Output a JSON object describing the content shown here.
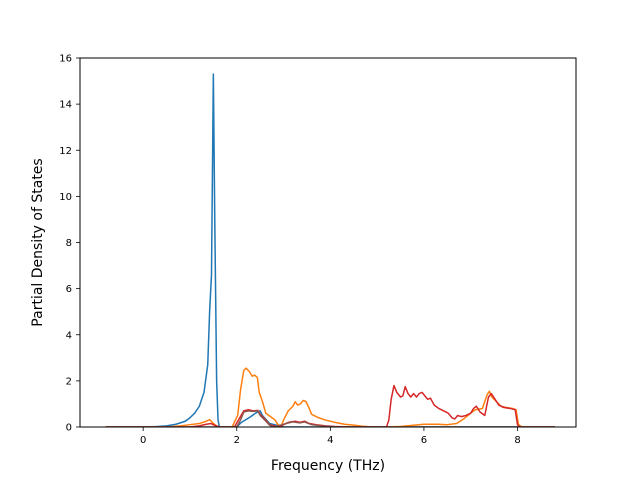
{
  "chart_data": {
    "type": "line",
    "title": "",
    "xlabel": "Frequency (THz)",
    "ylabel": "Partial Density of States",
    "xlim": [
      -1.35,
      9.25
    ],
    "ylim": [
      0,
      16
    ],
    "xticks": [
      0,
      2,
      4,
      6,
      8
    ],
    "yticks": [
      0,
      2,
      4,
      6,
      8,
      10,
      12,
      14,
      16
    ],
    "grid": false,
    "legend": "none",
    "series": [
      {
        "color": "#1f77b4",
        "points": [
          [
            -0.8,
            0
          ],
          [
            0,
            0
          ],
          [
            0.3,
            0.02
          ],
          [
            0.5,
            0.05
          ],
          [
            0.7,
            0.12
          ],
          [
            0.9,
            0.25
          ],
          [
            1.0,
            0.4
          ],
          [
            1.1,
            0.6
          ],
          [
            1.2,
            0.9
          ],
          [
            1.3,
            1.5
          ],
          [
            1.38,
            2.7
          ],
          [
            1.42,
            5.0
          ],
          [
            1.46,
            6.6
          ],
          [
            1.5,
            15.3
          ],
          [
            1.53,
            9.0
          ],
          [
            1.57,
            2.0
          ],
          [
            1.6,
            0.3
          ],
          [
            1.63,
            0
          ],
          [
            2.0,
            0
          ],
          [
            2.1,
            0.2
          ],
          [
            2.3,
            0.45
          ],
          [
            2.4,
            0.6
          ],
          [
            2.5,
            0.7
          ],
          [
            2.55,
            0.5
          ],
          [
            2.7,
            0.15
          ],
          [
            3.0,
            0
          ],
          [
            4.0,
            0
          ],
          [
            5.0,
            0
          ],
          [
            6.0,
            0
          ],
          [
            7.0,
            0
          ],
          [
            8.0,
            0
          ],
          [
            8.8,
            0
          ]
        ]
      },
      {
        "color": "#ff7f0e",
        "points": [
          [
            -0.8,
            0
          ],
          [
            0.5,
            0
          ],
          [
            0.8,
            0.05
          ],
          [
            1.0,
            0.1
          ],
          [
            1.2,
            0.15
          ],
          [
            1.35,
            0.25
          ],
          [
            1.42,
            0.32
          ],
          [
            1.5,
            0.15
          ],
          [
            1.6,
            0
          ],
          [
            1.9,
            0
          ],
          [
            2.02,
            0.5
          ],
          [
            2.08,
            1.6
          ],
          [
            2.15,
            2.45
          ],
          [
            2.2,
            2.55
          ],
          [
            2.27,
            2.4
          ],
          [
            2.33,
            2.2
          ],
          [
            2.38,
            2.25
          ],
          [
            2.44,
            2.15
          ],
          [
            2.48,
            1.5
          ],
          [
            2.55,
            1.1
          ],
          [
            2.62,
            0.6
          ],
          [
            2.72,
            0.45
          ],
          [
            2.82,
            0.3
          ],
          [
            2.88,
            0.1
          ],
          [
            2.95,
            0.05
          ],
          [
            3.0,
            0.3
          ],
          [
            3.1,
            0.7
          ],
          [
            3.2,
            0.9
          ],
          [
            3.25,
            1.1
          ],
          [
            3.3,
            0.95
          ],
          [
            3.36,
            1.0
          ],
          [
            3.42,
            1.15
          ],
          [
            3.48,
            1.1
          ],
          [
            3.55,
            0.8
          ],
          [
            3.6,
            0.55
          ],
          [
            3.75,
            0.4
          ],
          [
            3.9,
            0.3
          ],
          [
            4.1,
            0.2
          ],
          [
            4.3,
            0.12
          ],
          [
            4.5,
            0.08
          ],
          [
            4.7,
            0.03
          ],
          [
            4.9,
            0
          ],
          [
            5.2,
            0
          ],
          [
            5.5,
            0.02
          ],
          [
            5.8,
            0.08
          ],
          [
            6.0,
            0.12
          ],
          [
            6.3,
            0.12
          ],
          [
            6.5,
            0.1
          ],
          [
            6.7,
            0.15
          ],
          [
            6.85,
            0.35
          ],
          [
            7.0,
            0.6
          ],
          [
            7.1,
            0.75
          ],
          [
            7.25,
            0.8
          ],
          [
            7.35,
            1.4
          ],
          [
            7.4,
            1.55
          ],
          [
            7.45,
            1.3
          ],
          [
            7.55,
            1.1
          ],
          [
            7.65,
            0.9
          ],
          [
            7.75,
            0.85
          ],
          [
            7.9,
            0.8
          ],
          [
            7.97,
            0.75
          ],
          [
            8.02,
            0.1
          ],
          [
            8.1,
            0
          ],
          [
            8.8,
            0
          ]
        ]
      },
      {
        "color": "#d62728",
        "points": [
          [
            -0.8,
            0
          ],
          [
            1.0,
            0
          ],
          [
            1.2,
            0.05
          ],
          [
            1.35,
            0.12
          ],
          [
            1.45,
            0.15
          ],
          [
            1.55,
            0.05
          ],
          [
            1.65,
            0
          ],
          [
            1.95,
            0
          ],
          [
            2.05,
            0.35
          ],
          [
            2.15,
            0.7
          ],
          [
            2.25,
            0.75
          ],
          [
            2.35,
            0.7
          ],
          [
            2.45,
            0.72
          ],
          [
            2.5,
            0.55
          ],
          [
            2.6,
            0.35
          ],
          [
            2.7,
            0.1
          ],
          [
            2.8,
            0.05
          ],
          [
            2.9,
            0
          ],
          [
            3.0,
            0.1
          ],
          [
            3.1,
            0.2
          ],
          [
            3.25,
            0.25
          ],
          [
            3.35,
            0.2
          ],
          [
            3.45,
            0.25
          ],
          [
            3.55,
            0.15
          ],
          [
            3.7,
            0.1
          ],
          [
            3.9,
            0.05
          ],
          [
            4.1,
            0.02
          ],
          [
            4.4,
            0
          ],
          [
            5.2,
            0
          ],
          [
            5.25,
            0.3
          ],
          [
            5.3,
            1.2
          ],
          [
            5.36,
            1.8
          ],
          [
            5.42,
            1.5
          ],
          [
            5.5,
            1.3
          ],
          [
            5.55,
            1.35
          ],
          [
            5.6,
            1.75
          ],
          [
            5.66,
            1.45
          ],
          [
            5.72,
            1.3
          ],
          [
            5.78,
            1.45
          ],
          [
            5.84,
            1.3
          ],
          [
            5.9,
            1.45
          ],
          [
            5.96,
            1.5
          ],
          [
            6.02,
            1.35
          ],
          [
            6.08,
            1.2
          ],
          [
            6.14,
            1.25
          ],
          [
            6.22,
            0.95
          ],
          [
            6.32,
            0.8
          ],
          [
            6.42,
            0.7
          ],
          [
            6.52,
            0.6
          ],
          [
            6.6,
            0.4
          ],
          [
            6.66,
            0.35
          ],
          [
            6.72,
            0.5
          ],
          [
            6.8,
            0.45
          ],
          [
            6.9,
            0.5
          ],
          [
            7.0,
            0.6
          ],
          [
            7.06,
            0.8
          ],
          [
            7.12,
            0.9
          ],
          [
            7.2,
            0.65
          ],
          [
            7.3,
            0.5
          ],
          [
            7.38,
            1.3
          ],
          [
            7.44,
            1.45
          ],
          [
            7.52,
            1.2
          ],
          [
            7.6,
            0.95
          ],
          [
            7.7,
            0.85
          ],
          [
            7.85,
            0.8
          ],
          [
            7.95,
            0.75
          ],
          [
            8.0,
            0.1
          ],
          [
            8.05,
            0
          ],
          [
            8.8,
            0
          ]
        ]
      },
      {
        "color": "#8c564b",
        "points": [
          [
            -0.8,
            0
          ],
          [
            2.0,
            0
          ],
          [
            2.08,
            0.3
          ],
          [
            2.15,
            0.65
          ],
          [
            2.25,
            0.7
          ],
          [
            2.35,
            0.68
          ],
          [
            2.45,
            0.7
          ],
          [
            2.5,
            0.5
          ],
          [
            2.6,
            0.3
          ],
          [
            2.7,
            0.08
          ],
          [
            2.8,
            0
          ],
          [
            3.05,
            0.15
          ],
          [
            3.2,
            0.22
          ],
          [
            3.35,
            0.18
          ],
          [
            3.45,
            0.22
          ],
          [
            3.6,
            0.1
          ],
          [
            3.9,
            0.03
          ],
          [
            4.2,
            0
          ],
          [
            8.8,
            0
          ]
        ]
      }
    ]
  }
}
